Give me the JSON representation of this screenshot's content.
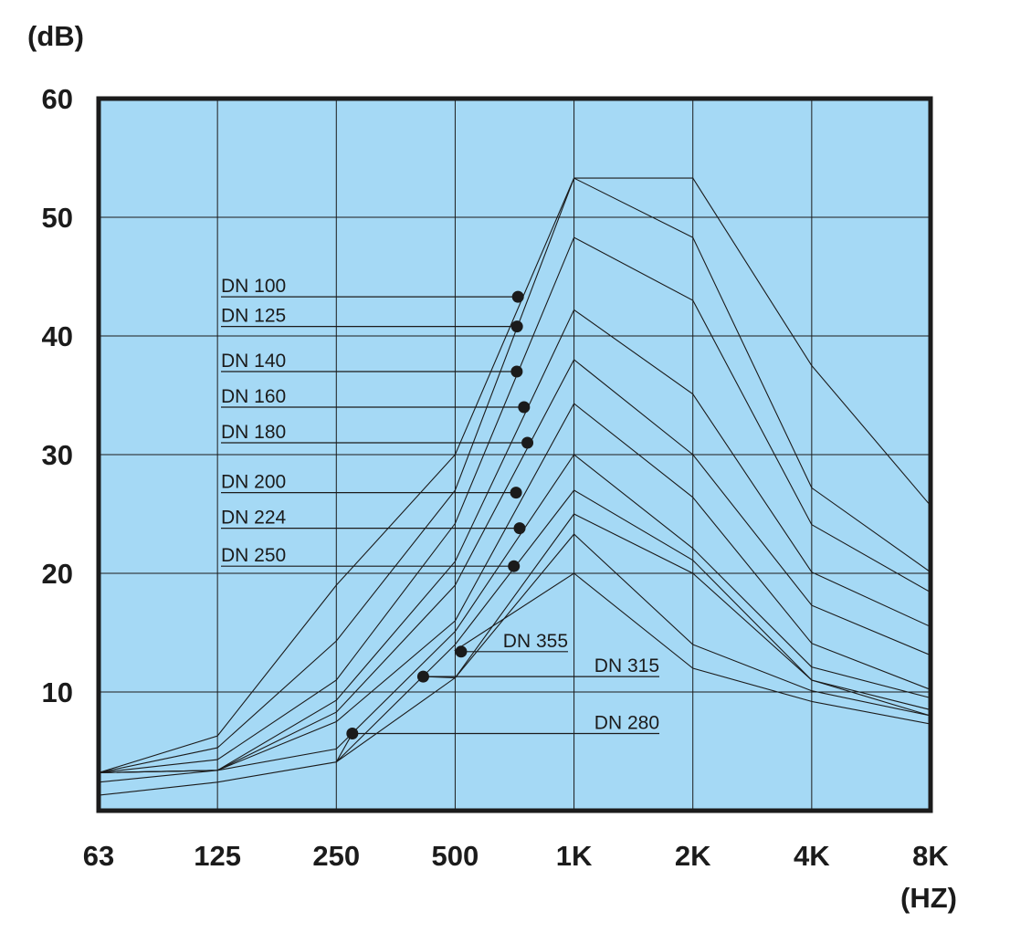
{
  "chart_data": {
    "type": "line",
    "y_unit": "(dB)",
    "x_unit": "(HZ)",
    "x_ticks": [
      "63",
      "125",
      "250",
      "500",
      "1K",
      "2K",
      "4K",
      "8K"
    ],
    "y_ticks": [
      "60",
      "50",
      "40",
      "30",
      "20",
      "10"
    ],
    "ylim": [
      0,
      60
    ],
    "grid": true,
    "colors": {
      "plot_background": "#a5d9f5",
      "line": "#1b1b1b",
      "text": "#1b1b1b"
    },
    "series": [
      {
        "name": "DN 100",
        "values": [
          3.2,
          6.3,
          19,
          30,
          53.3,
          53.3,
          37.5,
          25.7
        ],
        "marker_x": 724,
        "marker_y": 43.3
      },
      {
        "name": "DN 125",
        "values": [
          3.2,
          5.3,
          14.3,
          27,
          53.3,
          48.3,
          27.2,
          20.1
        ],
        "marker_x": 720,
        "marker_y": 40.8
      },
      {
        "name": "DN 140",
        "values": [
          3.2,
          4.3,
          11,
          24.2,
          48.3,
          43,
          24.1,
          18.4
        ],
        "marker_x": 719,
        "marker_y": 37
      },
      {
        "name": "DN 160",
        "values": [
          3.2,
          3.4,
          9.3,
          21,
          42.2,
          35.1,
          20.1,
          15.5
        ],
        "marker_x": 750,
        "marker_y": 34
      },
      {
        "name": "DN 180",
        "values": [
          3.2,
          3.4,
          8.3,
          19,
          38,
          30,
          17.3,
          13.1
        ],
        "marker_x": 765,
        "marker_y": 31
      },
      {
        "name": "DN 200",
        "values": [
          3.2,
          3.4,
          7.5,
          16,
          34.3,
          26.4,
          14.1,
          10.2
        ],
        "marker_x": 716,
        "marker_y": 26.8
      },
      {
        "name": "DN 224",
        "values": [
          2.4,
          3.4,
          5.2,
          15.1,
          30,
          22.1,
          12.1,
          9.5
        ],
        "marker_x": 731,
        "marker_y": 23.8
      },
      {
        "name": "DN 250",
        "values": [
          1.3,
          2.4,
          4.1,
          14,
          27,
          21.1,
          11,
          8.5
        ],
        "marker_x": 707,
        "marker_y": 20.6
      },
      {
        "name": "DN 280",
        "values": [
          null,
          null,
          4.1,
          11.2,
          25,
          20,
          11,
          8
        ],
        "marker_x": 276,
        "marker_y": 6.5
      },
      {
        "name": "DN 315",
        "values": [
          null,
          null,
          null,
          11.2,
          23.3,
          14,
          10.1,
          8
        ],
        "marker_x": 417,
        "marker_y": 11.3
      },
      {
        "name": "DN 355",
        "values": [
          null,
          null,
          null,
          13.5,
          20,
          12,
          9.2,
          7.3
        ],
        "marker_x": 520,
        "marker_y": 13.4
      }
    ]
  }
}
